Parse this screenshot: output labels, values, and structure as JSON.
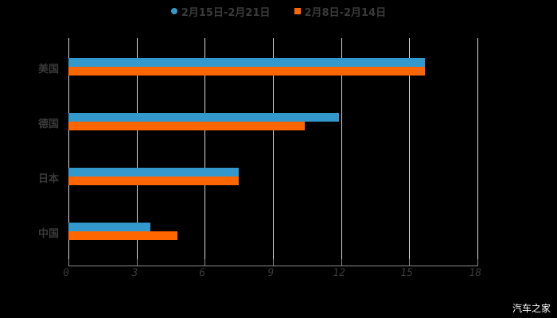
{
  "legend": [
    {
      "label": "2月15日-2月21日",
      "color": "#3399cc",
      "shape": "circle"
    },
    {
      "label": "2月8日-2月14日",
      "color": "#ff6600",
      "shape": "square"
    }
  ],
  "categories": [
    "美国",
    "德国",
    "日本",
    "中国"
  ],
  "x_ticks": [
    "0",
    "3",
    "6",
    "9",
    "12",
    "15",
    "18"
  ],
  "watermark": "汽车之家",
  "chart_data": {
    "type": "bar",
    "orientation": "horizontal",
    "title": "",
    "categories": [
      "美国",
      "德国",
      "日本",
      "中国"
    ],
    "series": [
      {
        "name": "2月15日-2月21日",
        "color": "#3399cc",
        "values": [
          15.7,
          11.9,
          7.5,
          3.6
        ]
      },
      {
        "name": "2月8日-2月14日",
        "color": "#ff6600",
        "values": [
          15.7,
          10.4,
          7.5,
          4.8
        ]
      }
    ],
    "xlabel": "",
    "ylabel": "",
    "xlim": [
      0,
      18
    ],
    "x_ticks": [
      0,
      3,
      6,
      9,
      12,
      15,
      18
    ],
    "grid": "vertical",
    "legend_position": "top"
  }
}
